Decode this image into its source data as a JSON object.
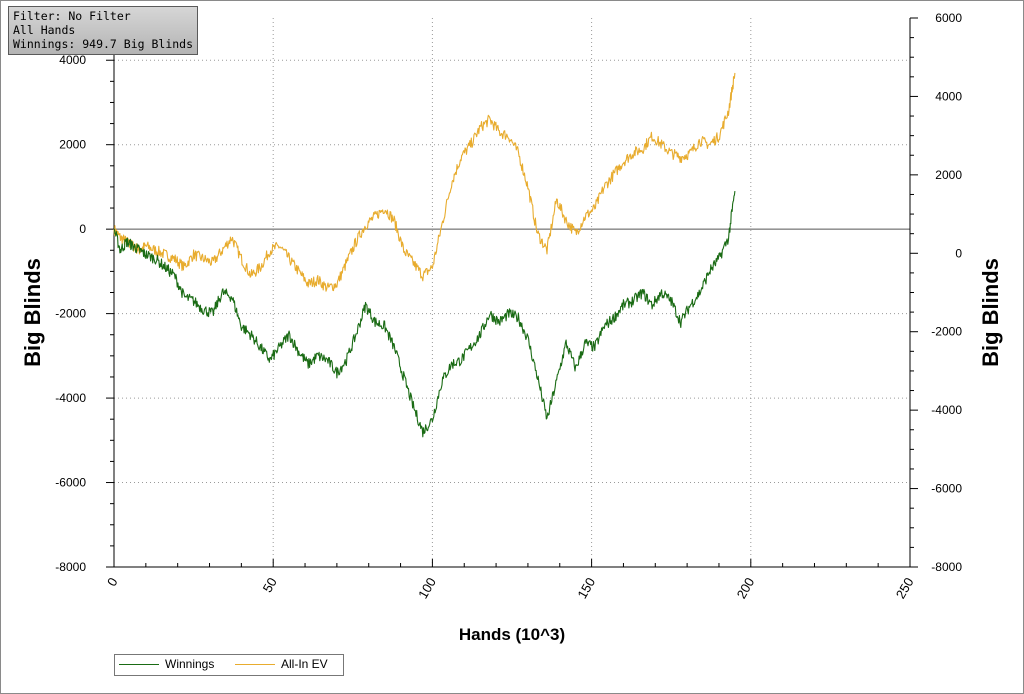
{
  "info_box": {
    "filter": "Filter: No Filter",
    "hands": "All Hands",
    "winnings": "Winnings: 949.7 Big Blinds"
  },
  "colors": {
    "winnings": "#1a6b14",
    "all_in_ev": "#e8ac2e",
    "grid": "#9a9a9a",
    "zero_line": "#555555"
  },
  "chart_data": {
    "type": "line",
    "title": "",
    "xlabel": "Hands (10^3)",
    "ylabel_left": "Big Blinds",
    "ylabel_right": "Big Blinds",
    "xlim": [
      0,
      250
    ],
    "ylim_left": [
      -8000,
      5000
    ],
    "ylim_right": [
      -8000,
      6000
    ],
    "x_ticks": [
      "0",
      "50",
      "100",
      "150",
      "200",
      "250"
    ],
    "y_ticks_left": [
      "4000",
      "2000",
      "0",
      "-2000",
      "-4000",
      "-6000",
      "-8000"
    ],
    "y_ticks_right": [
      "6000",
      "4000",
      "2000",
      "0",
      "-2000",
      "-4000",
      "-6000",
      "-8000"
    ],
    "grid": true,
    "legend": "bottom-left",
    "series": [
      {
        "name": "Winnings",
        "x": [
          0,
          2,
          4,
          6,
          8,
          10,
          13,
          16,
          19,
          22,
          25,
          28,
          31,
          34,
          37,
          40,
          43,
          46,
          49,
          52,
          55,
          58,
          61,
          64,
          67,
          70,
          73,
          76,
          79,
          82,
          85,
          88,
          91,
          94,
          97,
          100,
          103,
          106,
          109,
          112,
          115,
          118,
          121,
          124,
          127,
          130,
          133,
          136,
          139,
          142,
          145,
          148,
          151,
          154,
          157,
          160,
          163,
          166,
          169,
          172,
          175,
          178,
          181,
          184,
          187,
          190,
          193,
          195
        ],
        "values": [
          0,
          -500,
          -300,
          -400,
          -500,
          -600,
          -700,
          -900,
          -1100,
          -1600,
          -1700,
          -1900,
          -2000,
          -1500,
          -1600,
          -2300,
          -2500,
          -2800,
          -3100,
          -2800,
          -2500,
          -2900,
          -3200,
          -3000,
          -3100,
          -3400,
          -3100,
          -2500,
          -1800,
          -2200,
          -2300,
          -2800,
          -3500,
          -4200,
          -4800,
          -4500,
          -3600,
          -3200,
          -3100,
          -2800,
          -2500,
          -2000,
          -2200,
          -2000,
          -2100,
          -2600,
          -3500,
          -4500,
          -3600,
          -2700,
          -3300,
          -2700,
          -2800,
          -2300,
          -2100,
          -1800,
          -1700,
          -1500,
          -1800,
          -1500,
          -1700,
          -2200,
          -1800,
          -1500,
          -1000,
          -700,
          -200,
          900
        ]
      },
      {
        "name": "All-In EV",
        "x": [
          0,
          2,
          4,
          6,
          8,
          10,
          13,
          16,
          19,
          22,
          25,
          28,
          31,
          34,
          37,
          40,
          43,
          46,
          49,
          52,
          55,
          58,
          61,
          64,
          67,
          70,
          73,
          76,
          79,
          82,
          85,
          88,
          91,
          94,
          97,
          100,
          103,
          106,
          109,
          112,
          115,
          118,
          121,
          124,
          127,
          130,
          133,
          136,
          139,
          142,
          145,
          148,
          151,
          154,
          157,
          160,
          163,
          166,
          169,
          172,
          175,
          178,
          181,
          184,
          187,
          190,
          193,
          195
        ],
        "values": [
          0,
          -200,
          -300,
          -400,
          -500,
          -400,
          -500,
          -600,
          -700,
          -900,
          -600,
          -700,
          -800,
          -500,
          -200,
          -700,
          -1100,
          -900,
          -500,
          -400,
          -700,
          -1000,
          -1300,
          -1200,
          -1400,
          -1300,
          -800,
          -300,
          100,
          300,
          500,
          200,
          -500,
          -800,
          -1100,
          -900,
          100,
          1100,
          1700,
          2000,
          2400,
          2600,
          2300,
          2200,
          1800,
          1000,
          -100,
          -500,
          700,
          200,
          -100,
          300,
          500,
          1000,
          1300,
          1600,
          1800,
          1900,
          2200,
          2000,
          1800,
          1700,
          1800,
          2100,
          2000,
          2200,
          2800,
          3700
        ]
      }
    ]
  }
}
